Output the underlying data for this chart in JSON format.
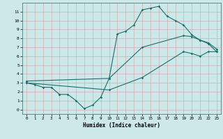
{
  "xlabel": "Humidex (Indice chaleur)",
  "bg_color": "#cce8e8",
  "grid_color": "#aacccc",
  "line_color": "#1a6e6e",
  "xlim": [
    -0.5,
    23.5
  ],
  "ylim": [
    -0.5,
    12
  ],
  "xticks": [
    0,
    1,
    2,
    3,
    4,
    5,
    6,
    7,
    8,
    9,
    10,
    11,
    12,
    13,
    14,
    15,
    16,
    17,
    18,
    19,
    20,
    21,
    22,
    23
  ],
  "yticks": [
    0,
    1,
    2,
    3,
    4,
    5,
    6,
    7,
    8,
    9,
    10,
    11
  ],
  "curve1_x": [
    0,
    1,
    2,
    3,
    4,
    4,
    5,
    6,
    7,
    8,
    9,
    10,
    11,
    12,
    13,
    14,
    15,
    16,
    17,
    18,
    19,
    20,
    21,
    22,
    23
  ],
  "curve1_y": [
    3,
    2.8,
    2.5,
    2.5,
    1.7,
    1.7,
    1.7,
    1.0,
    0.1,
    0.5,
    1.4,
    3.5,
    8.5,
    8.8,
    9.5,
    11.2,
    11.4,
    11.6,
    10.5,
    10.0,
    9.5,
    8.4,
    7.8,
    7.4,
    6.5
  ],
  "curve2_x": [
    0,
    10,
    14,
    19,
    20,
    21,
    22,
    23
  ],
  "curve2_y": [
    3.2,
    3.5,
    7.0,
    8.3,
    8.2,
    7.8,
    7.5,
    6.8
  ],
  "curve3_x": [
    0,
    10,
    14,
    19,
    20,
    21,
    22,
    23
  ],
  "curve3_y": [
    3.0,
    2.2,
    3.6,
    6.5,
    6.3,
    6.0,
    6.5,
    6.5
  ]
}
